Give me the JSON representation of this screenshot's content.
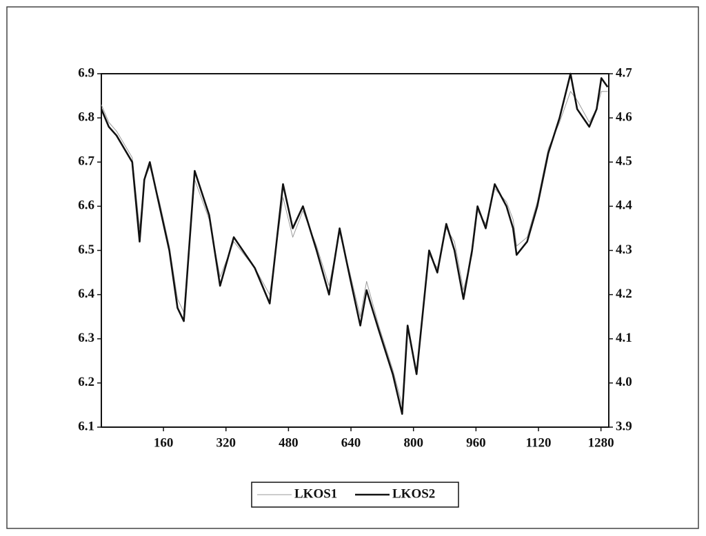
{
  "chart_data": {
    "type": "line",
    "x": [
      1,
      20,
      40,
      60,
      80,
      99,
      111,
      125,
      150,
      175,
      196,
      212,
      240,
      277,
      305,
      340,
      394,
      432,
      466,
      491,
      517,
      552,
      584,
      611,
      637,
      664,
      680,
      711,
      747,
      771,
      785,
      808,
      840,
      861,
      884,
      905,
      928,
      950,
      964,
      985,
      1008,
      1038,
      1055,
      1064,
      1091,
      1117,
      1145,
      1174,
      1202,
      1219,
      1250,
      1269,
      1281,
      1297
    ],
    "series": [
      {
        "name": "LKOS1",
        "color": "#9a9a9a",
        "axis": "y",
        "values": [
          6.83,
          6.79,
          6.77,
          6.74,
          6.71,
          6.55,
          6.66,
          6.69,
          6.61,
          6.51,
          6.39,
          6.36,
          6.66,
          6.57,
          6.44,
          6.52,
          6.46,
          6.4,
          6.62,
          6.53,
          6.59,
          6.51,
          6.42,
          6.54,
          6.45,
          6.35,
          6.43,
          6.33,
          6.23,
          6.15,
          6.32,
          6.23,
          6.49,
          6.46,
          6.55,
          6.52,
          6.41,
          6.49,
          6.59,
          6.56,
          6.64,
          6.61,
          6.57,
          6.51,
          6.53,
          6.61,
          6.73,
          6.79,
          6.86,
          6.84,
          6.79,
          6.82,
          6.86,
          6.86
        ]
      },
      {
        "name": "LKOS2",
        "color": "#111111",
        "axis": "y2",
        "values": [
          4.62,
          4.58,
          4.56,
          4.53,
          4.5,
          4.32,
          4.46,
          4.5,
          4.4,
          4.3,
          4.17,
          4.14,
          4.48,
          4.38,
          4.22,
          4.33,
          4.26,
          4.18,
          4.45,
          4.35,
          4.4,
          4.3,
          4.2,
          4.35,
          4.24,
          4.13,
          4.21,
          4.12,
          4.02,
          3.93,
          4.13,
          4.02,
          4.3,
          4.25,
          4.36,
          4.3,
          4.19,
          4.3,
          4.4,
          4.35,
          4.45,
          4.4,
          4.35,
          4.29,
          4.32,
          4.4,
          4.52,
          4.6,
          4.7,
          4.62,
          4.58,
          4.62,
          4.69,
          4.67
        ]
      }
    ],
    "xlim": [
      1,
      1300
    ],
    "xticks": [
      160,
      320,
      480,
      640,
      800,
      960,
      1120,
      1280
    ],
    "ylim": [
      6.1,
      6.9
    ],
    "yticks": [
      6.1,
      6.2,
      6.3,
      6.4,
      6.5,
      6.6,
      6.7,
      6.8,
      6.9
    ],
    "y2lim": [
      3.9,
      4.7
    ],
    "y2ticks": [
      3.9,
      {
        "value": 4,
        "label": "4.0"
      },
      4.1,
      4.2,
      4.3,
      4.4,
      4.5,
      4.6,
      4.7
    ],
    "legend": "bottom"
  }
}
